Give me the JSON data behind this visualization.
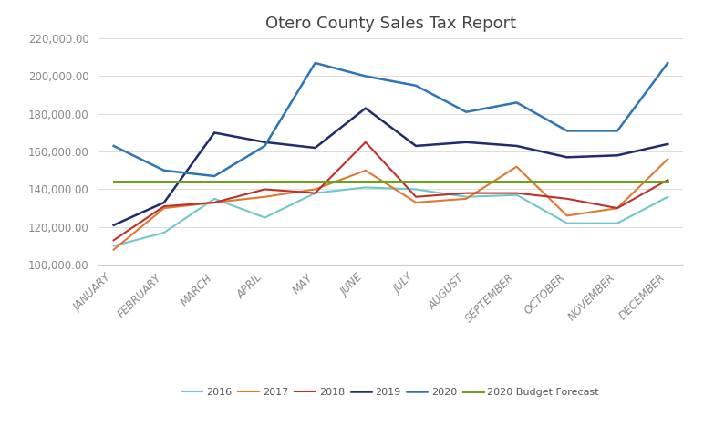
{
  "title": "Otero County Sales Tax Report",
  "months": [
    "JANUARY",
    "FEBRUARY",
    "MARCH",
    "APRIL",
    "MAY",
    "JUNE",
    "JULY",
    "AUGUST",
    "SEPTEMBER",
    "OCTOBER",
    "NOVEMBER",
    "DECEMBER"
  ],
  "series_order": [
    "2016",
    "2017",
    "2018",
    "2019",
    "2020",
    "2020 Budget Forecast"
  ],
  "series": {
    "2016": [
      110000,
      117000,
      135000,
      125000,
      138000,
      141000,
      140000,
      136000,
      137000,
      122000,
      122000,
      136000
    ],
    "2017": [
      108000,
      130000,
      133000,
      136000,
      140000,
      150000,
      133000,
      135000,
      152000,
      126000,
      130000,
      156000
    ],
    "2018": [
      113000,
      131000,
      133000,
      140000,
      138000,
      165000,
      136000,
      138000,
      138000,
      135000,
      130000,
      145000
    ],
    "2019": [
      121000,
      133000,
      170000,
      165000,
      162000,
      183000,
      163000,
      165000,
      163000,
      157000,
      158000,
      164000
    ],
    "2020": [
      163000,
      150000,
      147000,
      163000,
      207000,
      200000,
      195000,
      181000,
      186000,
      171000,
      171000,
      207000
    ],
    "2020 Budget Forecast": [
      144000,
      144000,
      144000,
      144000,
      144000,
      144000,
      144000,
      144000,
      144000,
      144000,
      144000,
      144000
    ]
  },
  "colors": {
    "2016": "#70c8c8",
    "2017": "#e07830",
    "2018": "#c0302a",
    "2019": "#1f2d6e",
    "2020": "#2e75b6",
    "2020 Budget Forecast": "#70a020"
  },
  "linewidths": {
    "2016": 1.5,
    "2017": 1.5,
    "2018": 1.5,
    "2019": 1.8,
    "2020": 1.8,
    "2020 Budget Forecast": 2.2
  },
  "ylim": [
    100000,
    220000
  ],
  "yticks": [
    100000,
    120000,
    140000,
    160000,
    180000,
    200000,
    220000
  ],
  "background_color": "#ffffff",
  "title_fontsize": 13,
  "tick_fontsize": 8.5,
  "legend_fontsize": 8
}
